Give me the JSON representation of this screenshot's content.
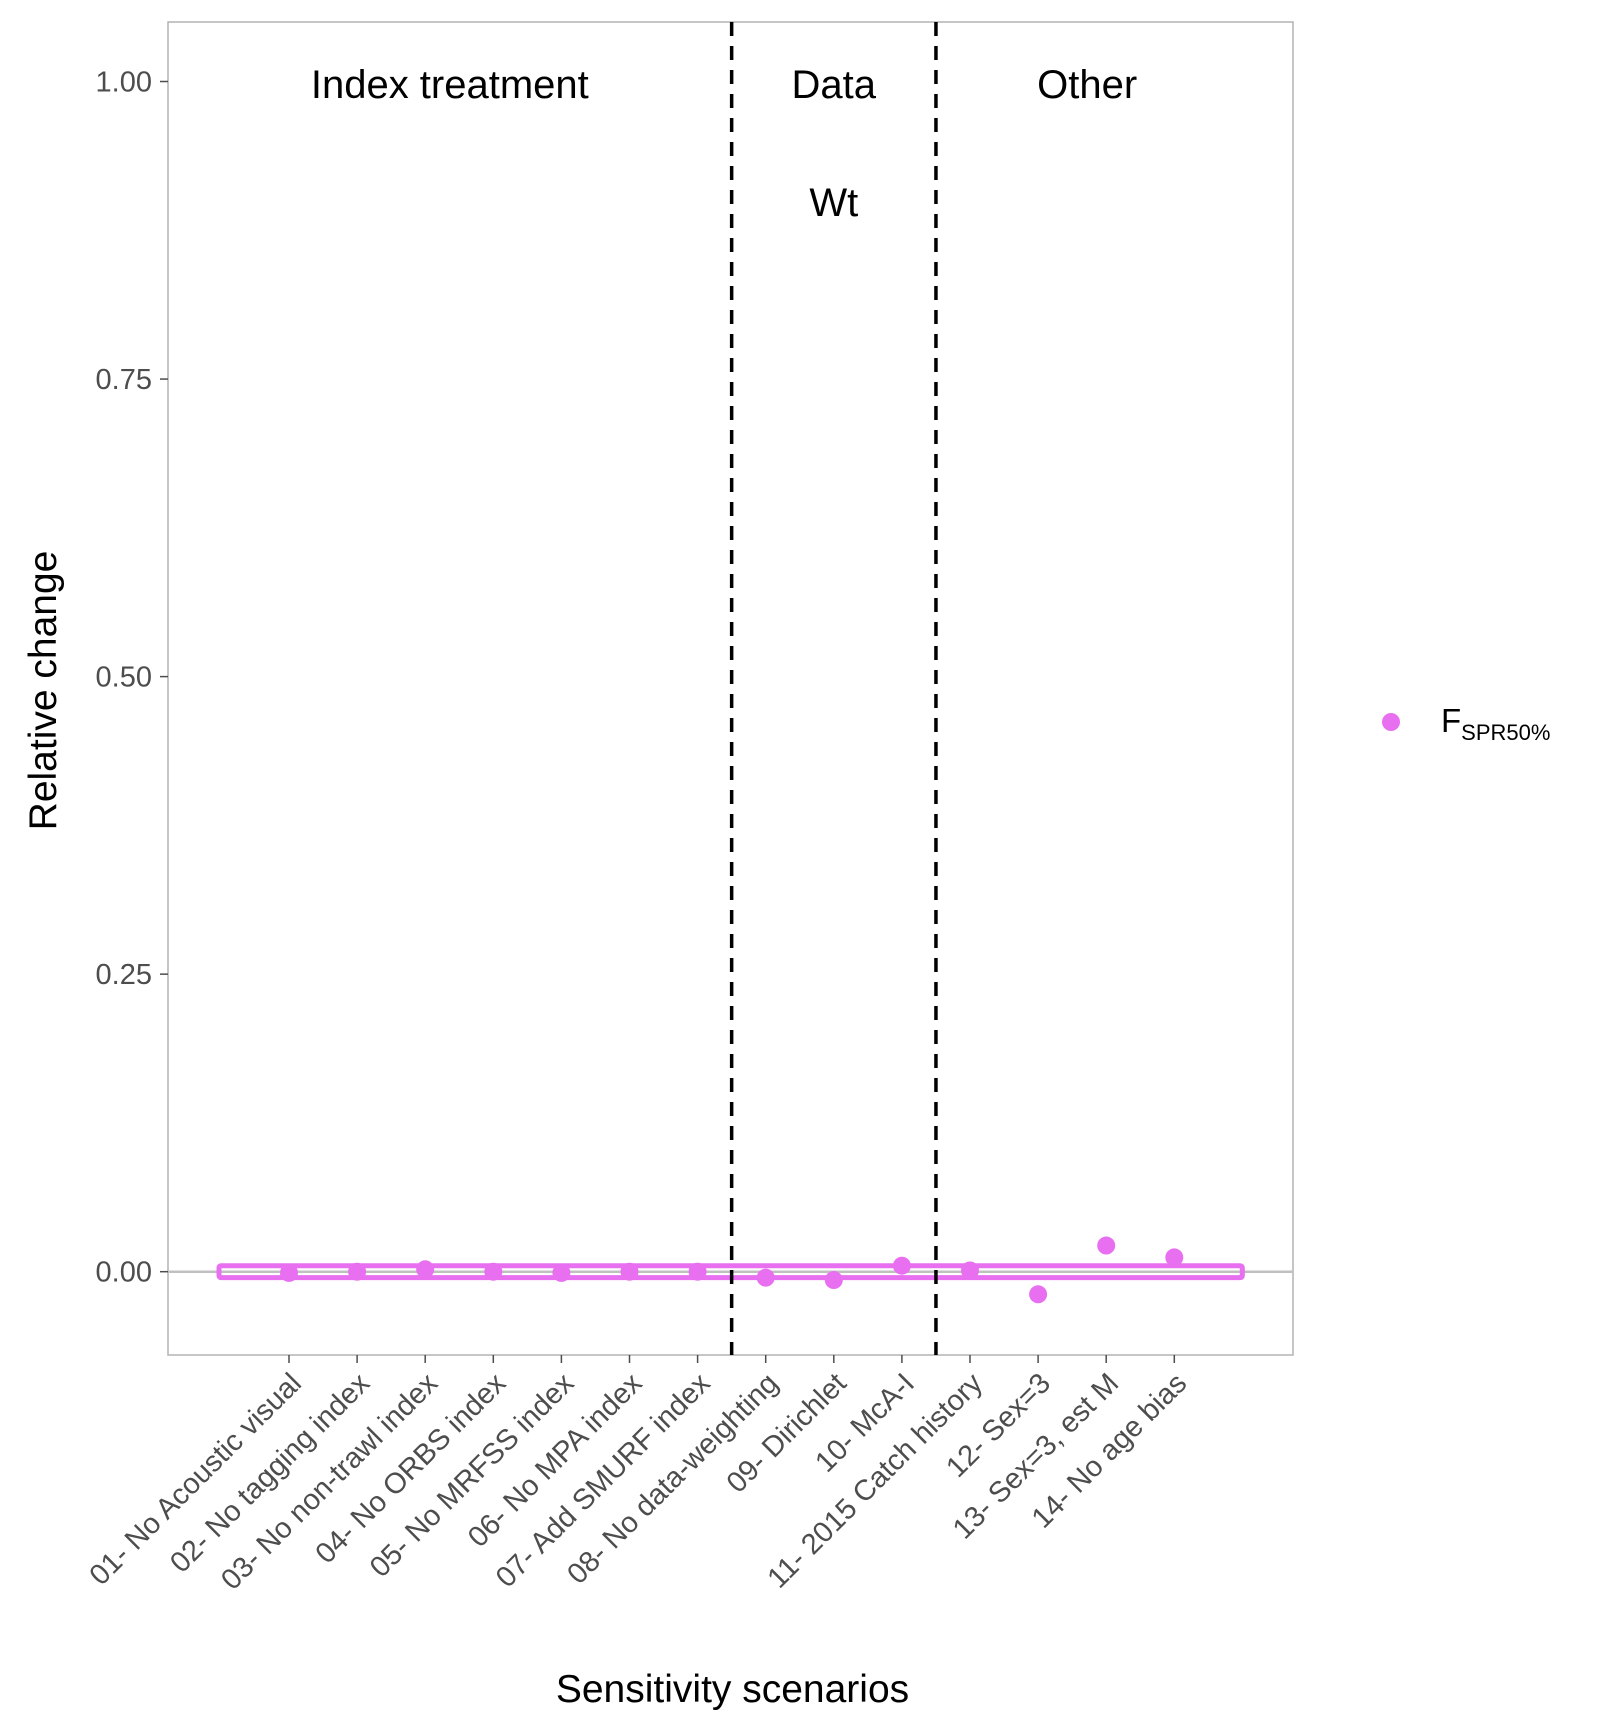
{
  "chart_data": {
    "type": "scatter",
    "title": "",
    "xlabel": "Sensitivity scenarios",
    "ylabel": "Relative change",
    "ylim": [
      -0.07,
      1.05
    ],
    "yticks": [
      0.0,
      0.25,
      0.5,
      0.75,
      1.0
    ],
    "ytick_labels": [
      "0.00",
      "0.25",
      "0.50",
      "0.75",
      "1.00"
    ],
    "categories": [
      "01- No Acoustic visual",
      "02- No tagging index",
      "03- No non-trawl index",
      "04- No ORBS index",
      "05- No MRFSS index",
      "06- No MPA index",
      "07- Add SMURF index",
      "08- No data-weighting",
      "09- Dirichlet",
      "10- McA-I",
      "11- 2015 Catch history",
      "12- Sex=3",
      "13- Sex=3, est M",
      "14- No age bias"
    ],
    "series": [
      {
        "name": "F",
        "name_subscript": "SPR50%",
        "color": "#e86ff0",
        "values": [
          -0.001,
          0.0,
          0.002,
          0.0,
          -0.001,
          0.0,
          0.0,
          -0.005,
          -0.007,
          0.005,
          0.001,
          -0.019,
          0.022,
          0.012
        ]
      }
    ],
    "reference_line": {
      "y": 0.0,
      "color": "#c0c0c0"
    },
    "band": {
      "ymin": -0.005,
      "ymax": 0.005,
      "color": "#e86ff0"
    },
    "group_dividers_after": [
      7,
      10
    ],
    "groups": [
      {
        "lines": [
          "Index treatment"
        ],
        "from": 1,
        "to": 7
      },
      {
        "lines": [
          "Data",
          "Wt"
        ],
        "from": 8,
        "to": 10
      },
      {
        "lines": [
          "Other"
        ],
        "from": 11,
        "to": 14
      }
    ],
    "grid": false,
    "legend_position": "right"
  }
}
